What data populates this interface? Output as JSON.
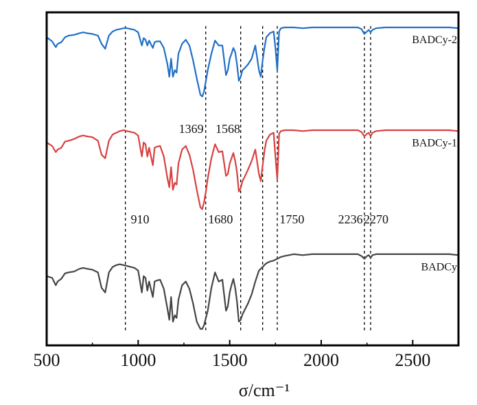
{
  "chart_data": {
    "type": "line",
    "xlabel": "σ/cm⁻¹",
    "xlim": [
      500,
      2750
    ],
    "x_ticks": [
      "500",
      "1000",
      "1500",
      "2000",
      "2500"
    ],
    "y_ticks_shown": false,
    "grid": false,
    "reference_lines_x": [
      930,
      1369,
      1560,
      1680,
      1760,
      2236,
      2270
    ],
    "annotations": [
      {
        "text": "1369",
        "x": 1290,
        "series": "BADCy-2",
        "pos": "below"
      },
      {
        "text": "1568",
        "x": 1490,
        "series": "BADCy-2",
        "pos": "below"
      },
      {
        "text": "910",
        "x": 1010,
        "series": "BADCy-1",
        "pos": "below"
      },
      {
        "text": "1680",
        "x": 1450,
        "series": "BADCy-1",
        "pos": "below"
      },
      {
        "text": "1750",
        "x": 1840,
        "series": "BADCy-1",
        "pos": "below"
      },
      {
        "text": "2236",
        "x": 2160,
        "series": "BADCy-1",
        "pos": "below"
      },
      {
        "text": "2270",
        "x": 2300,
        "series": "BADCy-1",
        "pos": "below"
      }
    ],
    "x": [
      500,
      530,
      550,
      560,
      580,
      600,
      620,
      650,
      680,
      700,
      720,
      750,
      780,
      800,
      820,
      840,
      860,
      880,
      900,
      920,
      940,
      960,
      980,
      1000,
      1020,
      1030,
      1040,
      1050,
      1060,
      1080,
      1090,
      1100,
      1120,
      1140,
      1160,
      1170,
      1180,
      1190,
      1200,
      1210,
      1220,
      1240,
      1260,
      1280,
      1300,
      1320,
      1340,
      1350,
      1360,
      1370,
      1380,
      1400,
      1420,
      1440,
      1460,
      1480,
      1490,
      1500,
      1510,
      1520,
      1530,
      1540,
      1550,
      1560,
      1570,
      1580,
      1600,
      1620,
      1640,
      1660,
      1670,
      1680,
      1690,
      1700,
      1720,
      1740,
      1750,
      1760,
      1770,
      1780,
      1800,
      1850,
      1900,
      1950,
      2000,
      2050,
      2100,
      2150,
      2200,
      2220,
      2236,
      2250,
      2260,
      2270,
      2280,
      2300,
      2350,
      2400,
      2450,
      2500,
      2550,
      2600,
      2650,
      2700,
      2750
    ],
    "series": [
      {
        "name": "BADCy-2",
        "color": "#1f6fc7",
        "values": [
          0.88,
          0.83,
          0.76,
          0.8,
          0.82,
          0.88,
          0.9,
          0.91,
          0.93,
          0.94,
          0.93,
          0.92,
          0.9,
          0.8,
          0.74,
          0.9,
          0.95,
          0.97,
          0.98,
          0.99,
          0.99,
          0.98,
          0.97,
          0.94,
          0.78,
          0.87,
          0.85,
          0.78,
          0.84,
          0.75,
          0.82,
          0.83,
          0.83,
          0.75,
          0.55,
          0.4,
          0.62,
          0.4,
          0.48,
          0.45,
          0.68,
          0.8,
          0.85,
          0.78,
          0.6,
          0.38,
          0.18,
          0.16,
          0.22,
          0.35,
          0.48,
          0.68,
          0.84,
          0.78,
          0.78,
          0.42,
          0.48,
          0.62,
          0.68,
          0.75,
          0.7,
          0.55,
          0.35,
          0.4,
          0.48,
          0.5,
          0.55,
          0.62,
          0.78,
          0.48,
          0.4,
          0.6,
          0.75,
          0.88,
          0.93,
          0.95,
          0.75,
          0.48,
          0.95,
          0.99,
          1.0,
          1.0,
          0.99,
          1.0,
          1.0,
          1.0,
          1.0,
          1.0,
          1.0,
          0.98,
          0.92,
          0.95,
          0.97,
          0.94,
          0.97,
          0.99,
          1.0,
          1.0,
          1.0,
          1.0,
          1.0,
          1.0,
          1.0,
          1.0,
          0.99
        ]
      },
      {
        "name": "BADCy-1",
        "color": "#d84040",
        "values": [
          0.86,
          0.82,
          0.75,
          0.78,
          0.8,
          0.87,
          0.88,
          0.9,
          0.93,
          0.94,
          0.93,
          0.92,
          0.88,
          0.72,
          0.68,
          0.88,
          0.95,
          0.97,
          0.99,
          1.0,
          0.99,
          0.98,
          0.97,
          0.94,
          0.7,
          0.86,
          0.84,
          0.7,
          0.8,
          0.6,
          0.8,
          0.81,
          0.82,
          0.7,
          0.45,
          0.35,
          0.58,
          0.32,
          0.4,
          0.38,
          0.62,
          0.78,
          0.82,
          0.72,
          0.55,
          0.32,
          0.12,
          0.1,
          0.18,
          0.3,
          0.45,
          0.68,
          0.84,
          0.75,
          0.76,
          0.48,
          0.5,
          0.62,
          0.68,
          0.74,
          0.65,
          0.52,
          0.3,
          0.34,
          0.42,
          0.46,
          0.55,
          0.65,
          0.78,
          0.5,
          0.42,
          0.6,
          0.76,
          0.88,
          0.95,
          0.97,
          0.7,
          0.44,
          0.96,
          0.99,
          1.0,
          1.0,
          0.99,
          1.0,
          1.0,
          1.0,
          1.0,
          1.0,
          1.0,
          0.98,
          0.93,
          0.96,
          0.97,
          0.93,
          0.97,
          0.99,
          1.0,
          1.0,
          1.0,
          1.0,
          1.0,
          1.0,
          1.0,
          1.0,
          0.99
        ]
      },
      {
        "name": "BADCy",
        "color": "#444444",
        "values": [
          0.58,
          0.56,
          0.48,
          0.52,
          0.55,
          0.61,
          0.62,
          0.63,
          0.66,
          0.67,
          0.66,
          0.65,
          0.62,
          0.45,
          0.4,
          0.62,
          0.68,
          0.7,
          0.71,
          0.7,
          0.69,
          0.68,
          0.67,
          0.64,
          0.4,
          0.58,
          0.56,
          0.42,
          0.52,
          0.35,
          0.52,
          0.53,
          0.54,
          0.44,
          0.22,
          0.1,
          0.35,
          0.08,
          0.15,
          0.12,
          0.32,
          0.48,
          0.52,
          0.44,
          0.28,
          0.08,
          0.0,
          0.0,
          0.04,
          0.12,
          0.2,
          0.45,
          0.62,
          0.52,
          0.54,
          0.2,
          0.25,
          0.4,
          0.48,
          0.55,
          0.45,
          0.3,
          0.08,
          0.1,
          0.16,
          0.2,
          0.28,
          0.38,
          0.52,
          0.64,
          0.66,
          0.68,
          0.7,
          0.72,
          0.74,
          0.75,
          0.76,
          0.77,
          0.78,
          0.79,
          0.8,
          0.82,
          0.81,
          0.82,
          0.82,
          0.82,
          0.82,
          0.82,
          0.82,
          0.8,
          0.77,
          0.8,
          0.81,
          0.78,
          0.81,
          0.82,
          0.82,
          0.82,
          0.82,
          0.82,
          0.82,
          0.82,
          0.82,
          0.82,
          0.81
        ]
      }
    ]
  }
}
